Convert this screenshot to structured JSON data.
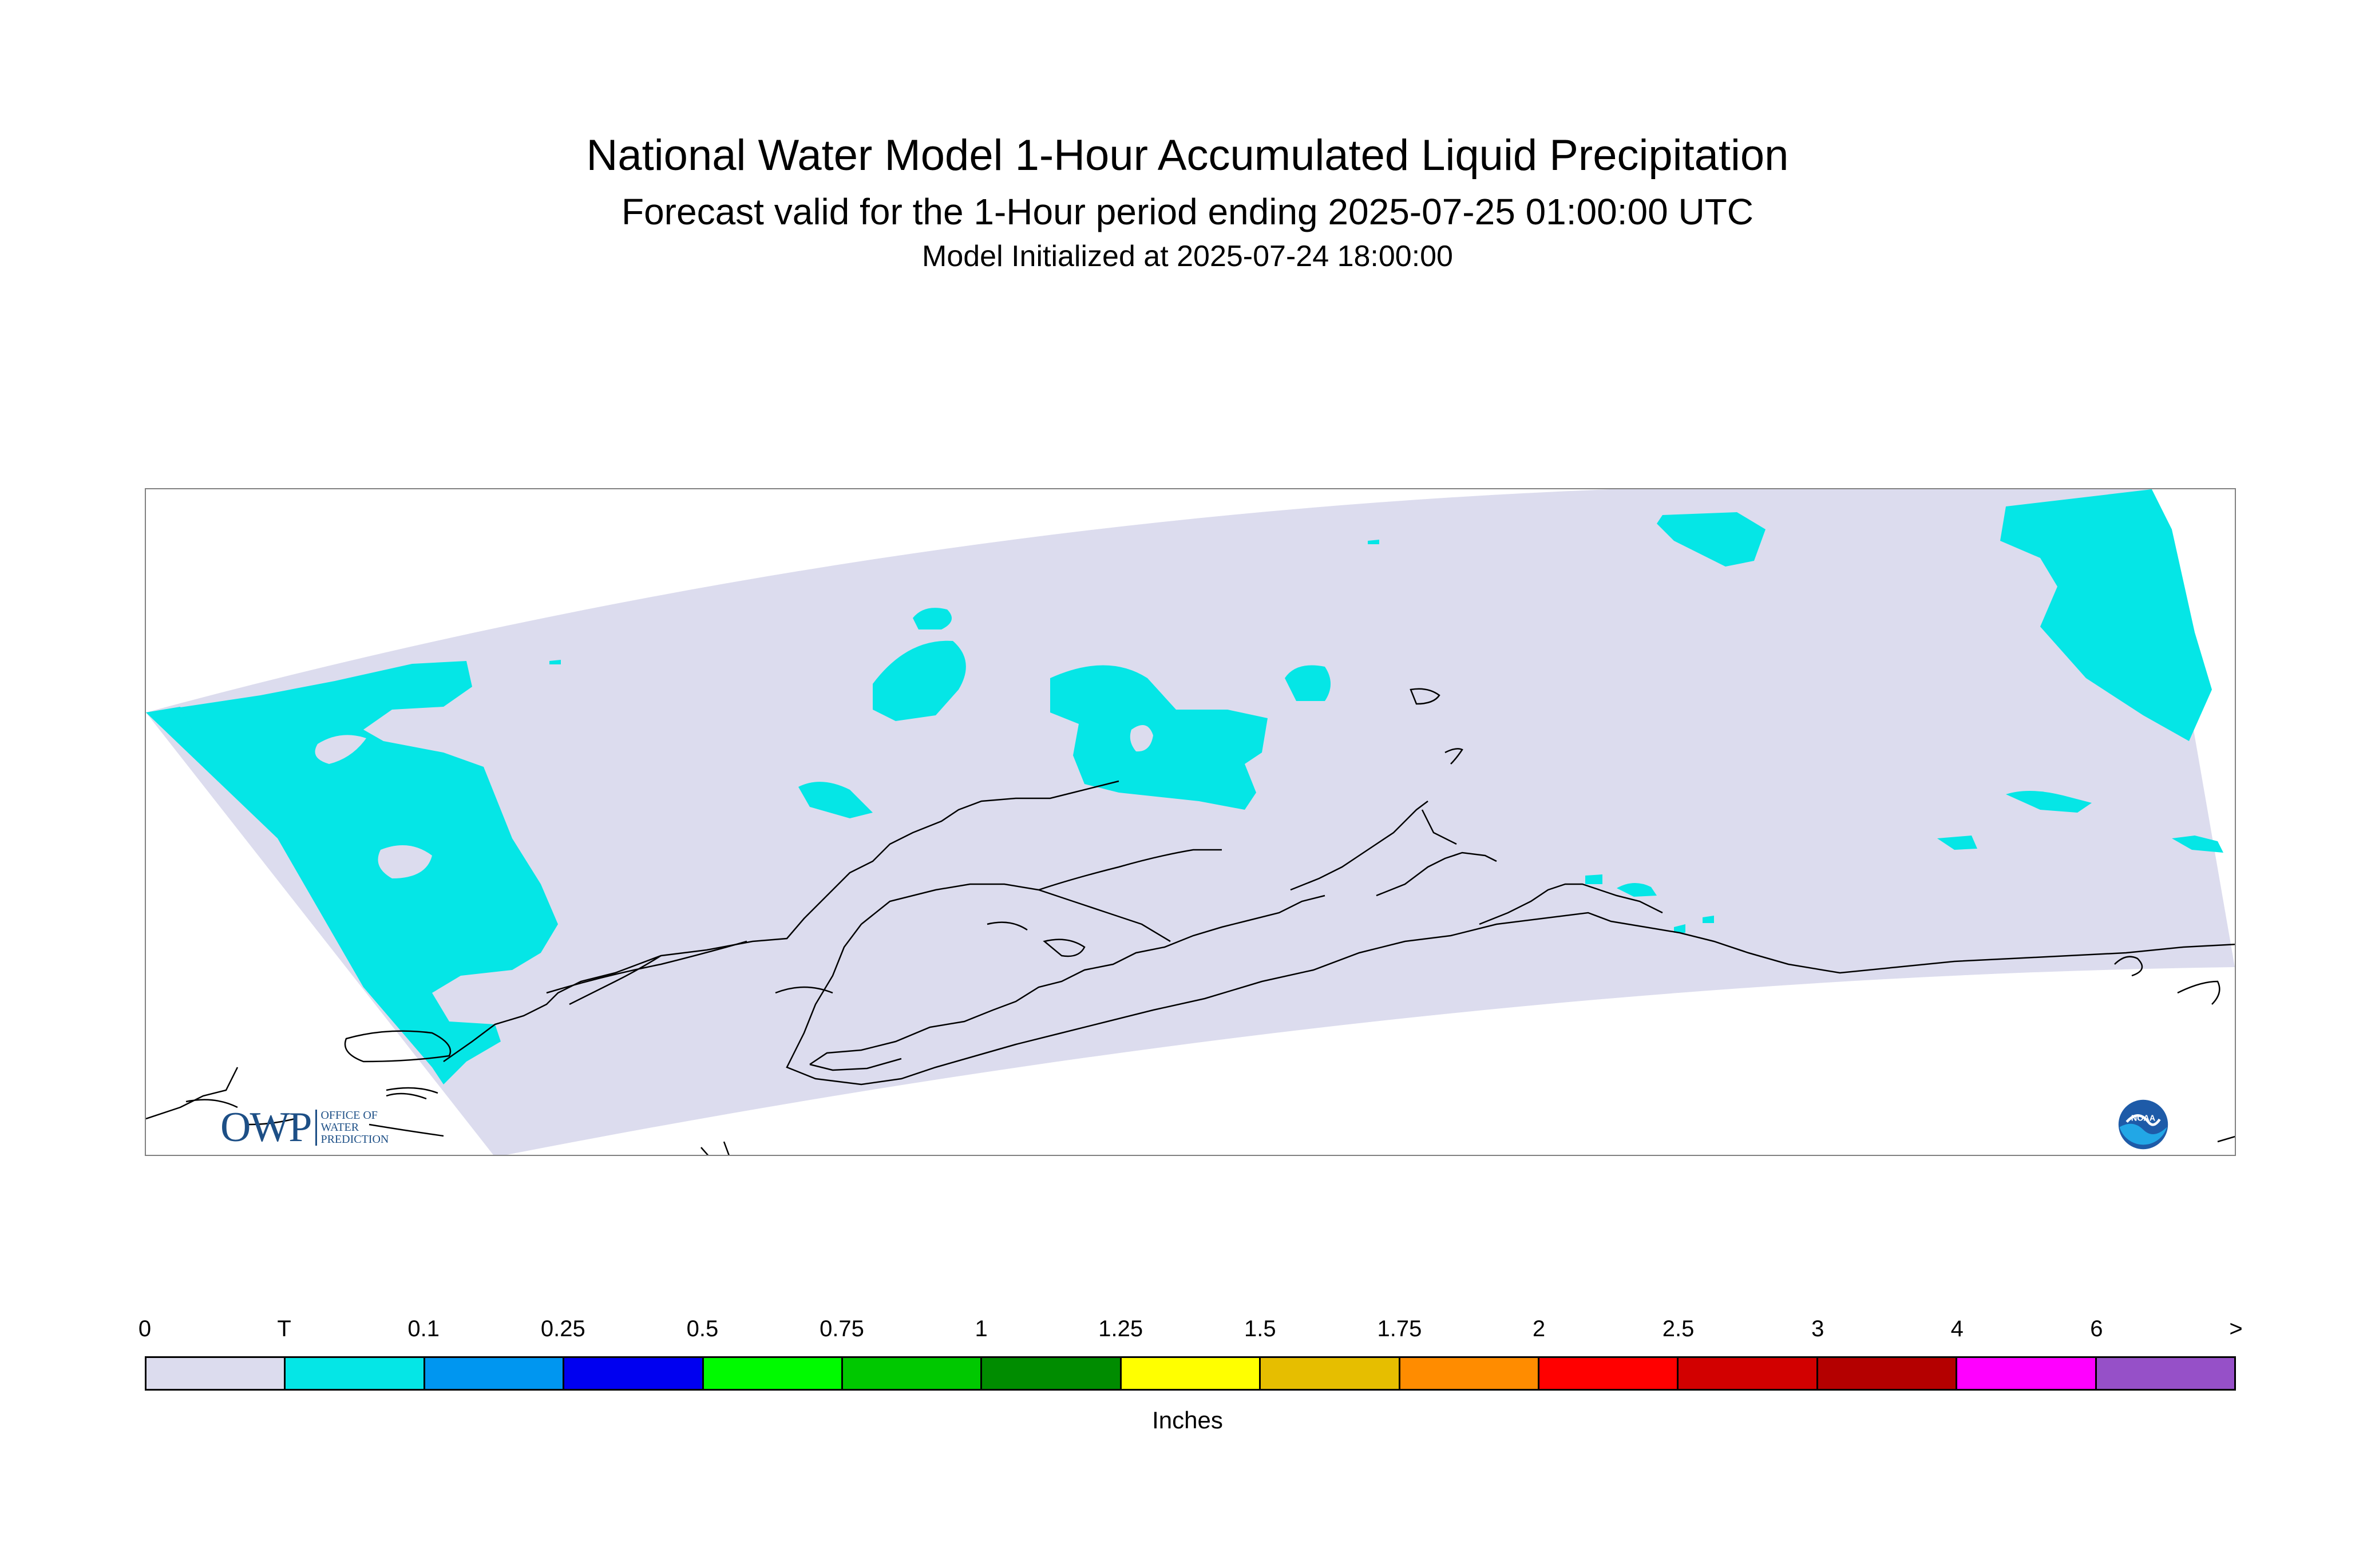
{
  "titles": {
    "main": "National Water Model 1-Hour Accumulated Liquid Precipitation",
    "sub": "Forecast valid for the 1-Hour period ending 2025-07-25 01:00:00 UTC",
    "init": "Model Initialized at 2025-07-24 18:00:00"
  },
  "map": {
    "domain_fill_color": "#dcdcee",
    "precip_fill_color": "#05e6e6",
    "coastline_color": "#000000",
    "frame_color": "#808080"
  },
  "logos": {
    "owp": {
      "big": "OWP",
      "lines": [
        "OFFICE OF",
        "WATER",
        "PREDICTION"
      ]
    },
    "noaa": {
      "text": "NOAA",
      "icon": "noaa-logo-icon"
    }
  },
  "legend": {
    "units": "Inches",
    "tick_labels": [
      "0",
      "T",
      "0.1",
      "0.25",
      "0.5",
      "0.75",
      "1",
      "1.25",
      "1.5",
      "1.75",
      "2",
      "2.5",
      "3",
      "4",
      "6",
      ">"
    ],
    "colors": [
      "#dcdcee",
      "#05e6e6",
      "#0096f0",
      "#0000f0",
      "#00fa00",
      "#00c800",
      "#008c00",
      "#ffff00",
      "#e6be00",
      "#ff8c00",
      "#ff0000",
      "#d20000",
      "#b40000",
      "#ff00ff",
      "#9650c8"
    ]
  }
}
